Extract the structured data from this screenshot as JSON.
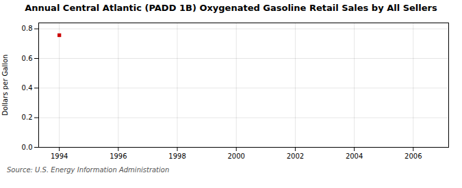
{
  "chart_data": {
    "type": "scatter",
    "title": "Annual Central Atlantic (PADD 1B) Oxygenated Gasoline Retail Sales by All Sellers",
    "ylabel": "Dollars per Gallon",
    "source": "Source: U.S. Energy Information Administration",
    "x": [
      1994
    ],
    "values": [
      0.757
    ],
    "color": "#cc0000",
    "marker": "square",
    "xlim": [
      1993.3,
      2007.2
    ],
    "ylim": [
      0.0,
      0.84
    ],
    "xticks": [
      1994,
      1996,
      1998,
      2000,
      2002,
      2004,
      2006
    ],
    "yticks": [
      {
        "value": 0.0,
        "label": "0.0"
      },
      0.2,
      0.4,
      0.6,
      0.8
    ],
    "grid": true
  }
}
